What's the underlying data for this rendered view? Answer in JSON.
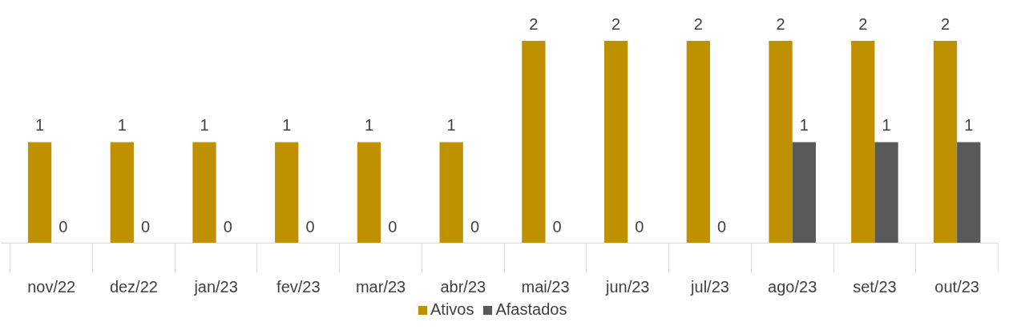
{
  "chart_data": {
    "type": "bar",
    "categories": [
      "nov/22",
      "dez/22",
      "jan/23",
      "fev/23",
      "mar/23",
      "abr/23",
      "mai/23",
      "jun/23",
      "jul/23",
      "ago/23",
      "set/23",
      "out/23"
    ],
    "series": [
      {
        "name": "Ativos",
        "color": "#bf9000",
        "values": [
          1,
          1,
          1,
          1,
          1,
          1,
          2,
          2,
          2,
          2,
          2,
          2
        ]
      },
      {
        "name": "Afastados",
        "color": "#595959",
        "values": [
          0,
          0,
          0,
          0,
          0,
          0,
          0,
          0,
          0,
          1,
          1,
          1
        ]
      }
    ],
    "data_labels": true,
    "grid": false,
    "legend": "bottom"
  }
}
